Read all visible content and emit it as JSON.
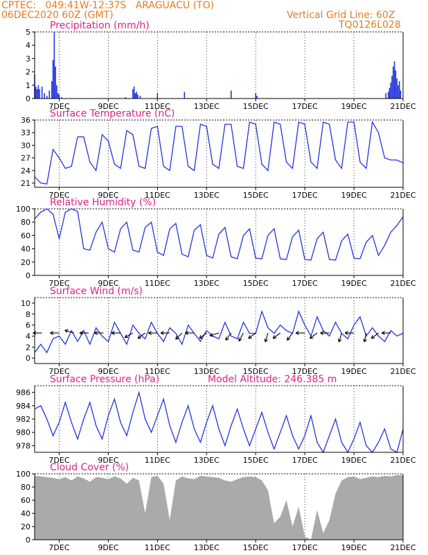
{
  "header": {
    "line1_left": "CPTEC:   049:41W-12:37S   ARAGUACU (TO)",
    "line2_left": "06DEC2020 60Z (GMT)",
    "line1_right": "Vertical Grid Line: 60Z",
    "line2_right": "TQ0126L028"
  },
  "colors": {
    "header": "#e87a1e",
    "title": "#e0208a",
    "line": "#2233dd",
    "cloud": "#aaaaaa",
    "arrow": "#000000"
  },
  "x_tick_labels": [
    "7DEC",
    "9DEC",
    "11DEC",
    "13DEC",
    "15DEC",
    "17DEC",
    "19DEC",
    "21DEC"
  ],
  "chart_data": [
    {
      "id": "precip",
      "type": "bar",
      "title": "Precipitation (mm/h)",
      "ylim": [
        0,
        5
      ],
      "yticks": [
        0,
        1,
        2,
        3,
        4,
        5
      ],
      "x": [
        6.0,
        6.05,
        6.1,
        6.15,
        6.2,
        6.3,
        6.4,
        6.5,
        6.6,
        6.7,
        6.75,
        6.8,
        6.85,
        6.9,
        6.95,
        7.0,
        7.1,
        9.7,
        10.0,
        10.05,
        10.1,
        10.15,
        10.2,
        10.3,
        11.0,
        12.1,
        14.0,
        15.0,
        15.05,
        20.3,
        20.4,
        20.45,
        20.5,
        20.55,
        20.6,
        20.65,
        20.7,
        20.75,
        20.8,
        20.85,
        20.9
      ],
      "values": [
        1.8,
        0.9,
        0.7,
        1.0,
        0.7,
        0.9,
        0.4,
        0.2,
        0.6,
        1.3,
        2.9,
        5.0,
        2.4,
        1.0,
        0.4,
        0.3,
        0.1,
        0.1,
        0.7,
        0.9,
        0.4,
        0.5,
        0.3,
        0.2,
        0.4,
        0.5,
        0.6,
        0.4,
        0.2,
        0.4,
        0.5,
        0.8,
        1.2,
        1.7,
        2.4,
        2.8,
        2.1,
        1.5,
        1.0,
        1.3,
        0.6
      ]
    },
    {
      "id": "temp",
      "type": "line",
      "title": "Surface Temperature (nC)",
      "ylim": [
        20,
        36
      ],
      "yticks": [
        21,
        24,
        27,
        30,
        33,
        36
      ],
      "x": [
        6.0,
        6.25,
        6.5,
        6.75,
        7.0,
        7.25,
        7.5,
        7.75,
        8.0,
        8.25,
        8.5,
        8.75,
        9.0,
        9.25,
        9.5,
        9.75,
        10.0,
        10.25,
        10.5,
        10.75,
        11.0,
        11.25,
        11.5,
        11.75,
        12.0,
        12.25,
        12.5,
        12.75,
        13.0,
        13.25,
        13.5,
        13.75,
        14.0,
        14.25,
        14.5,
        14.75,
        15.0,
        15.25,
        15.5,
        15.75,
        16.0,
        16.25,
        16.5,
        16.75,
        17.0,
        17.25,
        17.5,
        17.75,
        18.0,
        18.25,
        18.5,
        18.75,
        19.0,
        19.25,
        19.5,
        19.75,
        20.0,
        20.25,
        20.5,
        20.75,
        21.0
      ],
      "values": [
        22.5,
        21.0,
        20.8,
        29.0,
        27.0,
        24.5,
        25.0,
        32.0,
        32.0,
        26.0,
        24.0,
        32.5,
        31.0,
        25.5,
        24.5,
        33.5,
        32.5,
        25.0,
        24.5,
        34.0,
        34.5,
        25.0,
        24.0,
        34.5,
        34.5,
        25.0,
        24.0,
        35.0,
        34.5,
        25.5,
        24.5,
        35.0,
        35.0,
        25.0,
        24.5,
        35.5,
        35.0,
        25.5,
        24.0,
        35.5,
        35.0,
        26.0,
        24.5,
        35.5,
        35.0,
        26.0,
        24.5,
        35.5,
        35.0,
        26.5,
        24.5,
        35.5,
        35.5,
        26.0,
        24.5,
        35.5,
        33.0,
        27.0,
        26.5,
        26.5,
        25.8
      ]
    },
    {
      "id": "rh",
      "type": "line",
      "title": "Relative Humidity (%)",
      "ylim": [
        0,
        100
      ],
      "yticks": [
        0,
        20,
        40,
        60,
        80,
        100
      ],
      "x": [
        6.0,
        6.25,
        6.5,
        6.75,
        7.0,
        7.25,
        7.5,
        7.75,
        8.0,
        8.25,
        8.5,
        8.75,
        9.0,
        9.25,
        9.5,
        9.75,
        10.0,
        10.25,
        10.5,
        10.75,
        11.0,
        11.25,
        11.5,
        11.75,
        12.0,
        12.25,
        12.5,
        12.75,
        13.0,
        13.25,
        13.5,
        13.75,
        14.0,
        14.25,
        14.5,
        14.75,
        15.0,
        15.25,
        15.5,
        15.75,
        16.0,
        16.25,
        16.5,
        16.75,
        17.0,
        17.25,
        17.5,
        17.75,
        18.0,
        18.25,
        18.5,
        18.75,
        19.0,
        19.25,
        19.5,
        19.75,
        20.0,
        20.25,
        20.5,
        20.75,
        21.0
      ],
      "values": [
        85,
        95,
        100,
        92,
        55,
        95,
        100,
        96,
        40,
        38,
        65,
        80,
        40,
        35,
        70,
        80,
        38,
        35,
        72,
        80,
        35,
        30,
        70,
        78,
        32,
        28,
        68,
        76,
        30,
        26,
        62,
        72,
        28,
        25,
        60,
        70,
        26,
        25,
        60,
        70,
        25,
        24,
        58,
        68,
        24,
        23,
        55,
        65,
        24,
        23,
        52,
        62,
        26,
        25,
        50,
        60,
        30,
        45,
        65,
        75,
        88
      ]
    },
    {
      "id": "wind",
      "type": "line",
      "title": "Surface Wind (m/s)",
      "ylim": [
        -1,
        11
      ],
      "yticks": [
        0,
        2,
        4,
        6,
        8,
        10
      ],
      "x": [
        6.0,
        6.25,
        6.5,
        6.75,
        7.0,
        7.25,
        7.5,
        7.75,
        8.0,
        8.25,
        8.5,
        8.75,
        9.0,
        9.25,
        9.5,
        9.75,
        10.0,
        10.25,
        10.5,
        10.75,
        11.0,
        11.25,
        11.5,
        11.75,
        12.0,
        12.25,
        12.5,
        12.75,
        13.0,
        13.25,
        13.5,
        13.75,
        14.0,
        14.25,
        14.5,
        14.75,
        15.0,
        15.25,
        15.5,
        15.75,
        16.0,
        16.25,
        16.5,
        16.75,
        17.0,
        17.25,
        17.5,
        17.75,
        18.0,
        18.25,
        18.5,
        18.75,
        19.0,
        19.25,
        19.5,
        19.75,
        20.0,
        20.25,
        20.5,
        20.75,
        21.0
      ],
      "values": [
        1.0,
        2.5,
        1.0,
        3.5,
        4.0,
        2.5,
        5.0,
        3.0,
        5.0,
        2.5,
        5.5,
        4.0,
        3.0,
        6.5,
        4.5,
        2.5,
        6.0,
        4.5,
        3.5,
        6.5,
        4.5,
        3.0,
        5.5,
        4.5,
        2.5,
        6.0,
        4.5,
        3.0,
        5.0,
        4.0,
        3.5,
        6.5,
        4.0,
        3.5,
        6.5,
        4.5,
        4.5,
        8.5,
        5.5,
        4.5,
        6.0,
        5.0,
        4.5,
        8.5,
        6.0,
        4.0,
        7.5,
        5.0,
        4.0,
        6.5,
        4.5,
        3.5,
        6.0,
        7.5,
        4.0,
        5.5,
        4.0,
        3.0,
        5.0,
        4.0,
        4.5
      ],
      "arrows": [
        {
          "x": 6.3,
          "dx": -1,
          "dy": 0
        },
        {
          "x": 7.0,
          "dx": -1,
          "dy": 0
        },
        {
          "x": 7.6,
          "dx": -1,
          "dy": -0.3
        },
        {
          "x": 8.2,
          "dx": -1,
          "dy": 0
        },
        {
          "x": 8.8,
          "dx": -1,
          "dy": 0
        },
        {
          "x": 9.5,
          "dx": -1,
          "dy": 0
        },
        {
          "x": 10.0,
          "dx": -0.9,
          "dy": 0.5
        },
        {
          "x": 10.5,
          "dx": -0.8,
          "dy": 0.6
        },
        {
          "x": 11.0,
          "dx": -1,
          "dy": 0
        },
        {
          "x": 11.5,
          "dx": -1,
          "dy": 0
        },
        {
          "x": 12.0,
          "dx": -0.7,
          "dy": 0.7
        },
        {
          "x": 12.5,
          "dx": -1,
          "dy": 0
        },
        {
          "x": 13.0,
          "dx": -0.8,
          "dy": 0.6
        },
        {
          "x": 13.5,
          "dx": -1,
          "dy": 0.3
        },
        {
          "x": 14.0,
          "dx": -0.6,
          "dy": 0.8
        },
        {
          "x": 14.5,
          "dx": -0.5,
          "dy": 0.9
        },
        {
          "x": 15.0,
          "dx": -0.8,
          "dy": 0.6
        },
        {
          "x": 15.5,
          "dx": -0.3,
          "dy": 1
        },
        {
          "x": 16.0,
          "dx": -0.8,
          "dy": 0.6
        },
        {
          "x": 16.5,
          "dx": -0.6,
          "dy": 0.8
        },
        {
          "x": 17.0,
          "dx": -1,
          "dy": 0
        },
        {
          "x": 17.5,
          "dx": -0.8,
          "dy": 0.6
        },
        {
          "x": 18.0,
          "dx": -1,
          "dy": 0
        },
        {
          "x": 18.5,
          "dx": -0.3,
          "dy": 1
        },
        {
          "x": 19.0,
          "dx": -1,
          "dy": 0
        },
        {
          "x": 19.5,
          "dx": -0.2,
          "dy": 1
        },
        {
          "x": 20.0,
          "dx": -0.8,
          "dy": 0.6
        },
        {
          "x": 20.5,
          "dx": -1,
          "dy": 0
        }
      ]
    },
    {
      "id": "pres",
      "type": "line",
      "title": "Surface Pressure (hPa)",
      "annotation": "Model Altitude: 246.385 m",
      "ylim": [
        977,
        987
      ],
      "yticks": [
        978,
        980,
        982,
        984,
        986
      ],
      "x": [
        6.0,
        6.25,
        6.5,
        6.75,
        7.0,
        7.25,
        7.5,
        7.75,
        8.0,
        8.25,
        8.5,
        8.75,
        9.0,
        9.25,
        9.5,
        9.75,
        10.0,
        10.25,
        10.5,
        10.75,
        11.0,
        11.25,
        11.5,
        11.75,
        12.0,
        12.25,
        12.5,
        12.75,
        13.0,
        13.25,
        13.5,
        13.75,
        14.0,
        14.25,
        14.5,
        14.75,
        15.0,
        15.25,
        15.5,
        15.75,
        16.0,
        16.25,
        16.5,
        16.75,
        17.0,
        17.25,
        17.5,
        17.75,
        18.0,
        18.25,
        18.5,
        18.75,
        19.0,
        19.25,
        19.5,
        19.75,
        20.0,
        20.25,
        20.5,
        20.75,
        21.0
      ],
      "values": [
        983.5,
        984.0,
        982.0,
        979.5,
        981.5,
        984.5,
        981.5,
        979.0,
        982.0,
        984.5,
        981.0,
        979.0,
        982.5,
        985.0,
        981.5,
        979.5,
        983.0,
        986.0,
        982.0,
        980.0,
        982.5,
        985.0,
        981.0,
        978.5,
        981.5,
        984.0,
        980.5,
        978.5,
        981.5,
        984.0,
        980.5,
        978.0,
        981.0,
        983.5,
        980.5,
        978.0,
        980.5,
        983.0,
        980.0,
        977.5,
        980.0,
        982.5,
        979.5,
        977.5,
        979.5,
        982.5,
        978.5,
        977.0,
        979.5,
        982.0,
        978.5,
        977.0,
        979.0,
        981.5,
        978.0,
        977.0,
        978.5,
        980.5,
        977.5,
        977.0,
        980.5
      ]
    },
    {
      "id": "cloud",
      "type": "area",
      "title": "Cloud Cover (%)",
      "ylim": [
        0,
        100
      ],
      "yticks": [
        0,
        20,
        40,
        60,
        80,
        100
      ],
      "x": [
        6.0,
        6.25,
        6.5,
        6.75,
        7.0,
        7.25,
        7.5,
        7.75,
        8.0,
        8.25,
        8.5,
        8.75,
        9.0,
        9.25,
        9.5,
        9.75,
        10.0,
        10.25,
        10.5,
        10.75,
        11.0,
        11.25,
        11.5,
        11.75,
        12.0,
        12.25,
        12.5,
        12.75,
        13.0,
        13.25,
        13.5,
        13.75,
        14.0,
        14.25,
        14.5,
        14.75,
        15.0,
        15.25,
        15.5,
        15.75,
        16.0,
        16.25,
        16.5,
        16.75,
        17.0,
        17.25,
        17.5,
        17.75,
        18.0,
        18.25,
        18.5,
        18.75,
        19.0,
        19.25,
        19.5,
        19.75,
        20.0,
        20.25,
        20.5,
        20.75,
        21.0
      ],
      "values": [
        97,
        96,
        95,
        94,
        92,
        95,
        90,
        96,
        93,
        88,
        95,
        94,
        92,
        96,
        93,
        85,
        94,
        90,
        40,
        95,
        97,
        85,
        30,
        90,
        96,
        93,
        92,
        97,
        96,
        95,
        94,
        90,
        88,
        92,
        95,
        96,
        95,
        90,
        75,
        25,
        35,
        60,
        20,
        50,
        5,
        0,
        45,
        10,
        30,
        70,
        90,
        95,
        96,
        92,
        94,
        96,
        95,
        97,
        96,
        98,
        98
      ]
    }
  ]
}
